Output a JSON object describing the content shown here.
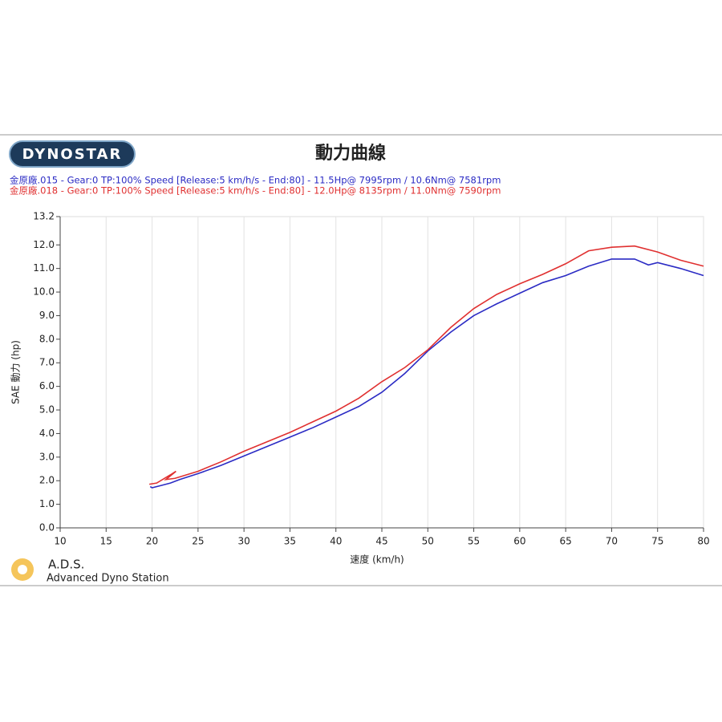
{
  "chart_data": {
    "type": "line",
    "logo": "DYNOSTAR",
    "title": "動力曲線",
    "xlabel": "速度 (km/h)",
    "ylabel": "SAE 動力 (hp)",
    "footer_title": "A.D.S.",
    "footer_subtitle": "Advanced Dyno Station",
    "xlim": [
      10,
      80
    ],
    "xticks": [
      10,
      15,
      20,
      25,
      30,
      35,
      40,
      45,
      50,
      55,
      60,
      65,
      70,
      75,
      80
    ],
    "ylim": [
      0,
      13.2
    ],
    "yticks": [
      {
        "value": 0,
        "label": "0.0"
      },
      {
        "value": 1,
        "label": "1.0"
      },
      {
        "value": 2,
        "label": "2.0"
      },
      {
        "value": 3,
        "label": "3.0"
      },
      {
        "value": 4,
        "label": "4.0"
      },
      {
        "value": 5,
        "label": "5.0"
      },
      {
        "value": 6,
        "label": "6.0"
      },
      {
        "value": 7,
        "label": "7.0"
      },
      {
        "value": 8,
        "label": "8.0"
      },
      {
        "value": 9,
        "label": "9.0"
      },
      {
        "value": 10,
        "label": "10.0"
      },
      {
        "value": 11,
        "label": "11.0"
      },
      {
        "value": 12,
        "label": "12.0"
      },
      13.2
    ],
    "grid": "x",
    "series": [
      {
        "name": "金原廠.015 - Gear:0 TP:100% Speed [Release:5 km/h/s - End:80]   - 11.5Hp@ 7995rpm / 10.6Nm@ 7581rpm",
        "color": "#2b2bc4",
        "x": [
          19.8,
          20,
          21,
          22,
          23,
          25,
          27.5,
          30,
          32.5,
          35,
          37.5,
          40,
          42.5,
          45,
          47.5,
          50,
          52.5,
          55,
          57.5,
          60,
          62.5,
          65,
          67.5,
          70,
          72.5,
          74,
          75,
          77.5,
          80
        ],
        "values": [
          1.75,
          1.7,
          1.8,
          1.9,
          2.05,
          2.3,
          2.65,
          3.05,
          3.45,
          3.85,
          4.25,
          4.7,
          5.15,
          5.75,
          6.55,
          7.5,
          8.3,
          9.0,
          9.5,
          9.95,
          10.4,
          10.7,
          11.1,
          11.4,
          11.4,
          11.15,
          11.25,
          11.0,
          10.7
        ]
      },
      {
        "name": "金原廠.018 - Gear:0 TP:100% Speed [Release:5 km/h/s - End:80]   - 12.0Hp@ 8135rpm / 11.0Nm@ 7590rpm",
        "color": "#e03030",
        "x": [
          19.7,
          20.5,
          22,
          22.6,
          21.5,
          22.5,
          25,
          27.5,
          30,
          32.5,
          35,
          37.5,
          40,
          42.5,
          45,
          47.5,
          50,
          52.5,
          55,
          57.5,
          60,
          62.5,
          65,
          67.5,
          70,
          72.5,
          75,
          77.5,
          80
        ],
        "values": [
          1.85,
          1.9,
          2.25,
          2.4,
          2.05,
          2.1,
          2.4,
          2.8,
          3.25,
          3.65,
          4.05,
          4.5,
          4.95,
          5.5,
          6.2,
          6.8,
          7.55,
          8.5,
          9.3,
          9.9,
          10.35,
          10.75,
          11.2,
          11.75,
          11.9,
          11.95,
          11.7,
          11.35,
          11.1
        ]
      }
    ]
  }
}
